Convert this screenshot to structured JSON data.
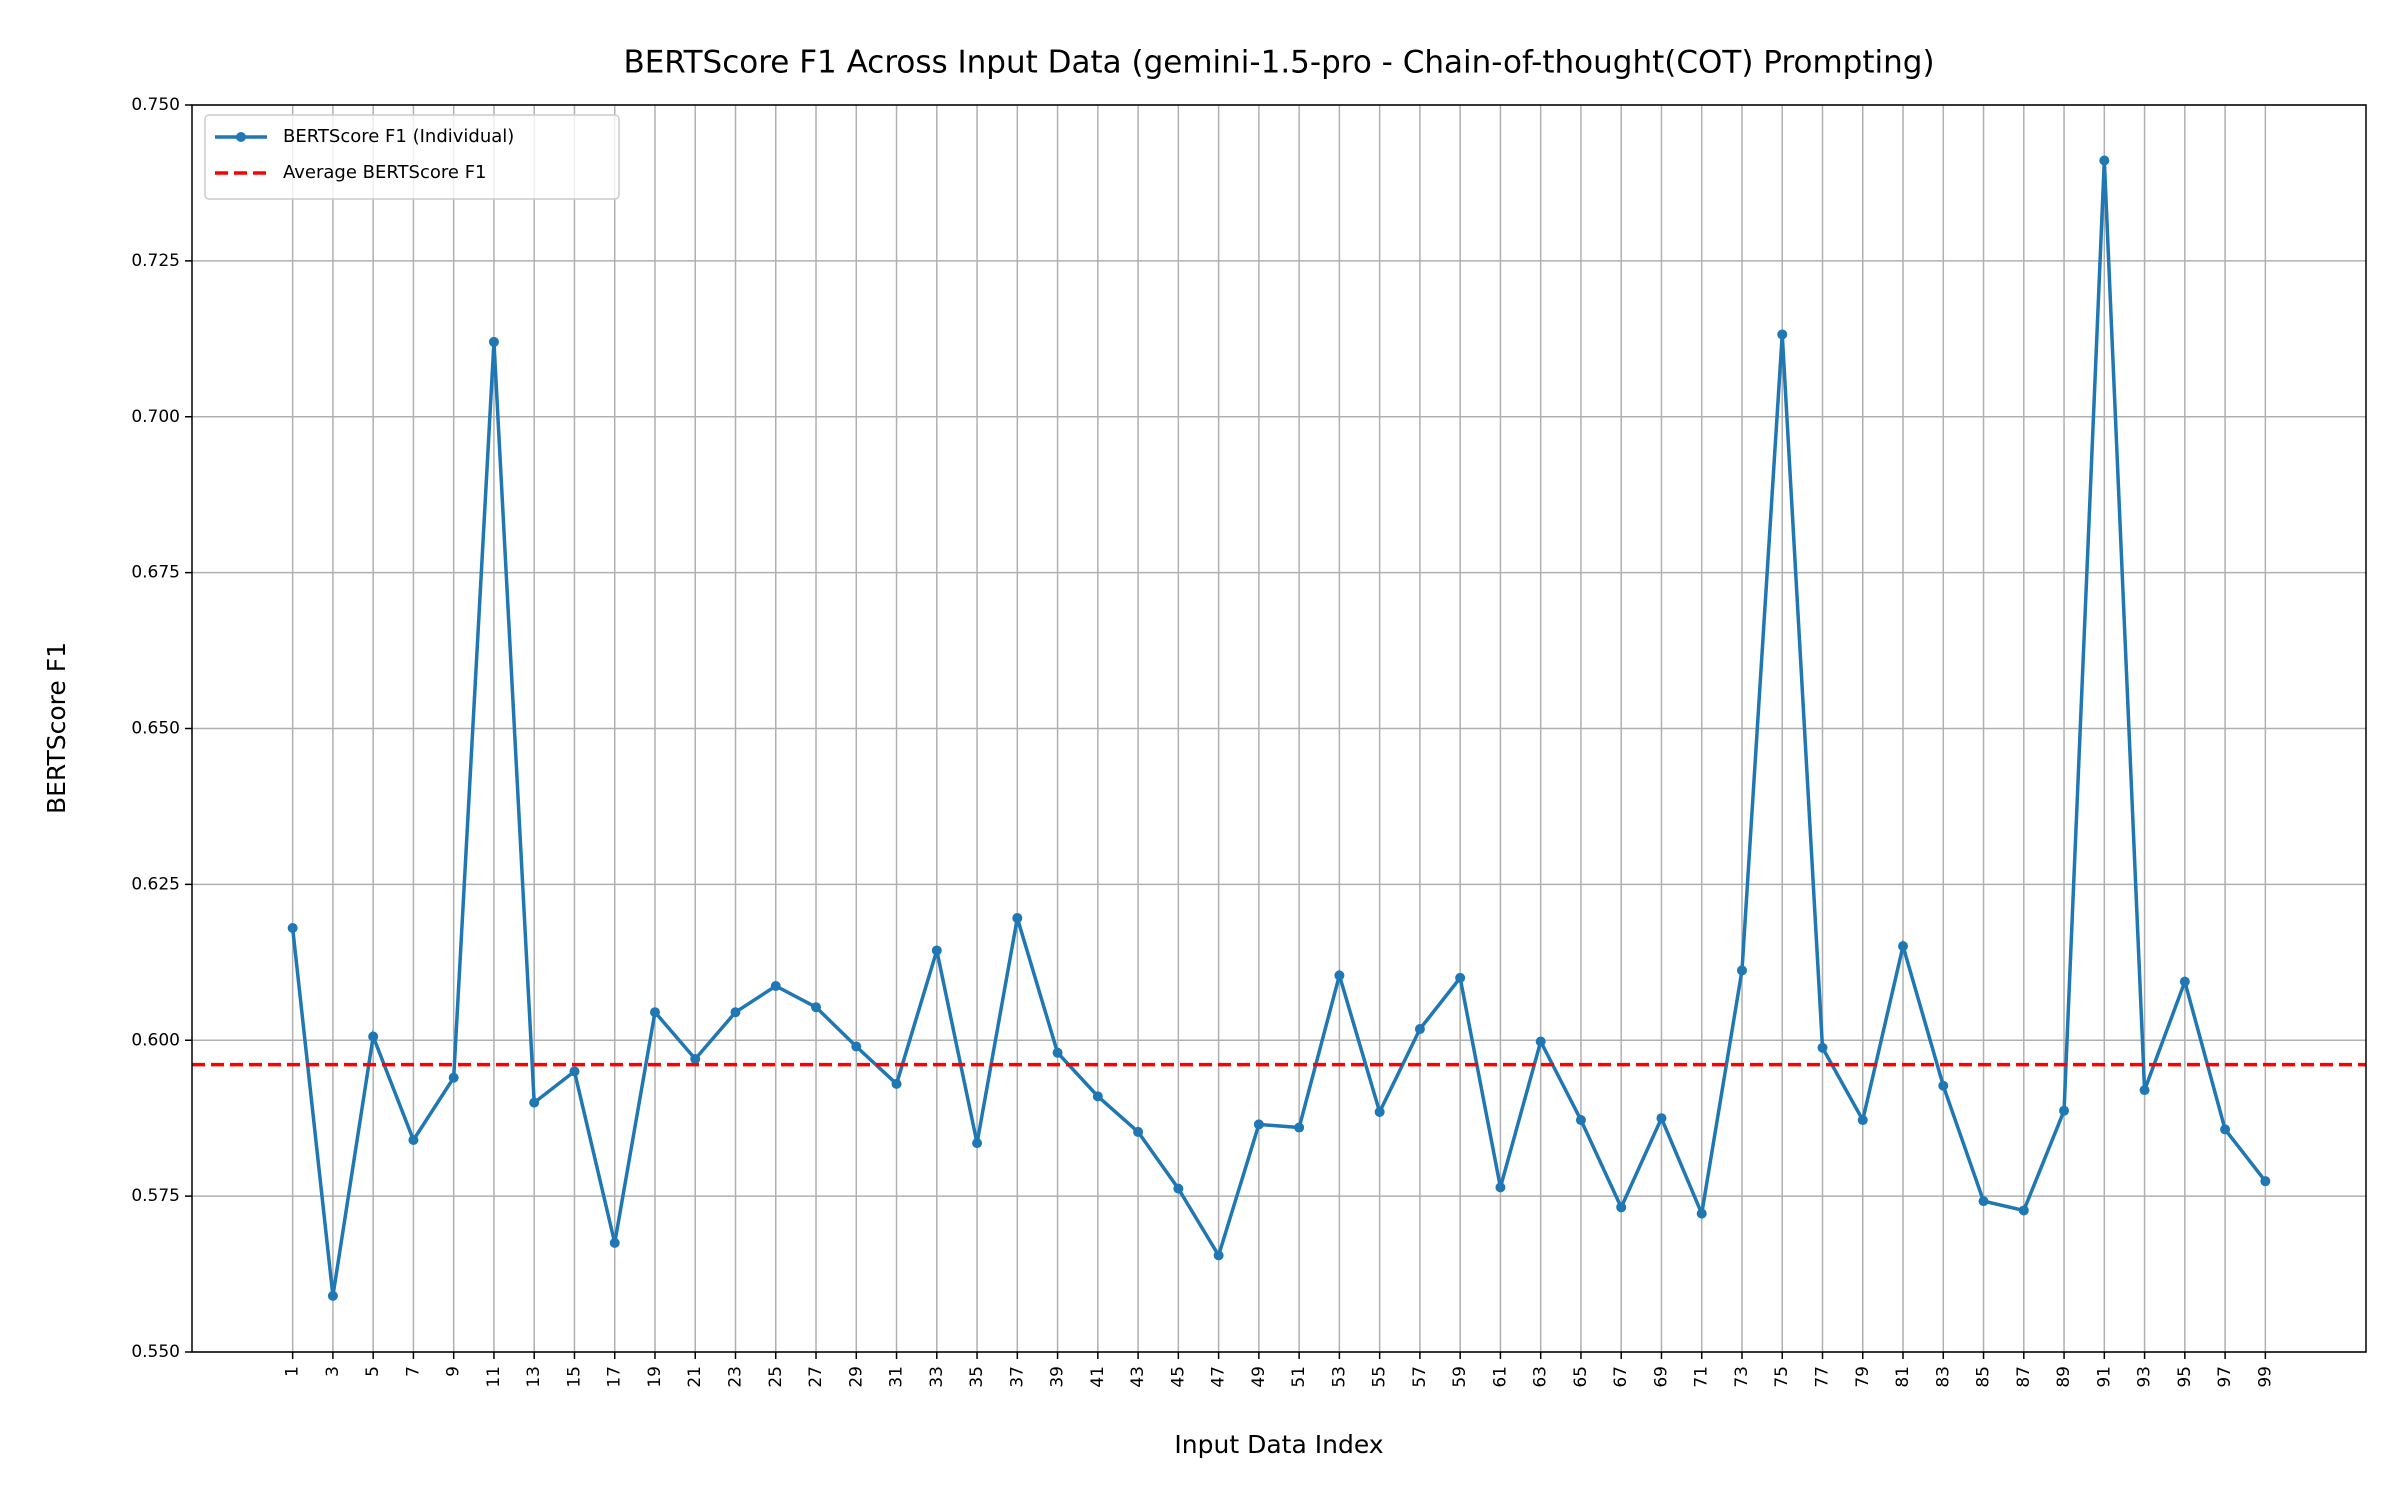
{
  "chart_data": {
    "type": "line",
    "title": "BERTScore F1 Across Input Data (gemini-1.5-pro - Chain-of-thought(COT) Prompting)",
    "xlabel": "Input Data Index",
    "ylabel": "BERTScore F1",
    "x": [
      1,
      3,
      5,
      7,
      9,
      11,
      13,
      15,
      17,
      19,
      21,
      23,
      25,
      27,
      29,
      31,
      33,
      35,
      37,
      39,
      41,
      43,
      45,
      47,
      49,
      51,
      53,
      55,
      57,
      59,
      61,
      63,
      65,
      67,
      69,
      71,
      73,
      75,
      77,
      79,
      81,
      83,
      85,
      87,
      89,
      91,
      93,
      95,
      97,
      99
    ],
    "series": [
      {
        "name": "BERTScore F1 (Individual)",
        "color": "#1f77b4",
        "marker": "circle",
        "values": [
          0.618,
          0.559,
          0.6006,
          0.584,
          0.594,
          0.712,
          0.59,
          0.595,
          0.5675,
          0.6045,
          0.597,
          0.6045,
          0.6087,
          0.6053,
          0.599,
          0.593,
          0.6144,
          0.5835,
          0.6196,
          0.598,
          0.591,
          0.5853,
          0.5762,
          0.5655,
          0.5865,
          0.586,
          0.6104,
          0.5885,
          0.6018,
          0.61,
          0.5764,
          0.5998,
          0.5872,
          0.5732,
          0.5875,
          0.5722,
          0.6112,
          0.7132,
          0.5988,
          0.5872,
          0.6151,
          0.5927,
          0.5742,
          0.5727,
          0.5887,
          0.7411,
          0.592,
          0.6094,
          0.5857,
          0.5774
        ]
      }
    ],
    "reference_lines": [
      {
        "name": "Average BERTScore F1",
        "value": 0.5961,
        "color": "#ff0000",
        "style": "dashed"
      }
    ],
    "xlim": [
      -4,
      104
    ],
    "xticks": [
      1,
      3,
      5,
      7,
      9,
      11,
      13,
      15,
      17,
      19,
      21,
      23,
      25,
      27,
      29,
      31,
      33,
      35,
      37,
      39,
      41,
      43,
      45,
      47,
      49,
      51,
      53,
      55,
      57,
      59,
      61,
      63,
      65,
      67,
      69,
      71,
      73,
      75,
      77,
      79,
      81,
      83,
      85,
      87,
      89,
      91,
      93,
      95,
      97,
      99
    ],
    "ylim": [
      0.55,
      0.75
    ],
    "yticks": [
      {
        "value": 0.55,
        "label": "0.550"
      },
      0.575,
      {
        "value": 0.6,
        "label": "0.600"
      },
      0.625,
      {
        "value": 0.65,
        "label": "0.650"
      },
      0.675,
      {
        "value": 0.7,
        "label": "0.700"
      },
      0.725,
      {
        "value": 0.75,
        "label": "0.750"
      }
    ],
    "grid": true,
    "legend": "upper left"
  }
}
